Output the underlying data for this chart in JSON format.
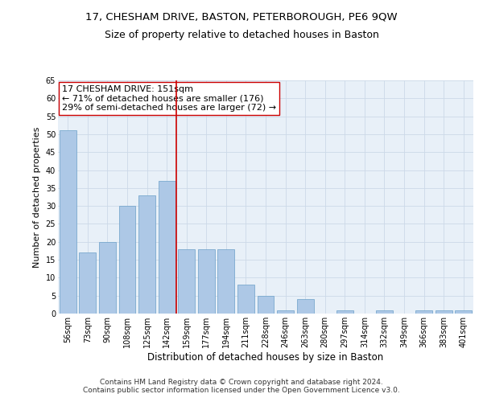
{
  "title": "17, CHESHAM DRIVE, BASTON, PETERBOROUGH, PE6 9QW",
  "subtitle": "Size of property relative to detached houses in Baston",
  "xlabel": "Distribution of detached houses by size in Baston",
  "ylabel": "Number of detached properties",
  "categories": [
    "56sqm",
    "73sqm",
    "90sqm",
    "108sqm",
    "125sqm",
    "142sqm",
    "159sqm",
    "177sqm",
    "194sqm",
    "211sqm",
    "228sqm",
    "246sqm",
    "263sqm",
    "280sqm",
    "297sqm",
    "314sqm",
    "332sqm",
    "349sqm",
    "366sqm",
    "383sqm",
    "401sqm"
  ],
  "values": [
    51,
    17,
    20,
    30,
    33,
    37,
    18,
    18,
    18,
    8,
    5,
    1,
    4,
    0,
    1,
    0,
    1,
    0,
    1,
    1,
    1
  ],
  "bar_color": "#adc8e6",
  "bar_edge_color": "#6a9fc8",
  "vline_x": 5.5,
  "vline_color": "#cc0000",
  "annotation_text": "17 CHESHAM DRIVE: 151sqm\n← 71% of detached houses are smaller (176)\n29% of semi-detached houses are larger (72) →",
  "annotation_box_color": "#ffffff",
  "annotation_box_edge": "#cc0000",
  "ylim": [
    0,
    65
  ],
  "yticks": [
    0,
    5,
    10,
    15,
    20,
    25,
    30,
    35,
    40,
    45,
    50,
    55,
    60,
    65
  ],
  "grid_color": "#ccd9e8",
  "footer": "Contains HM Land Registry data © Crown copyright and database right 2024.\nContains public sector information licensed under the Open Government Licence v3.0.",
  "title_fontsize": 9.5,
  "subtitle_fontsize": 9,
  "xlabel_fontsize": 8.5,
  "ylabel_fontsize": 8,
  "tick_fontsize": 7,
  "annotation_fontsize": 8,
  "footer_fontsize": 6.5,
  "bg_color": "#e8f0f8"
}
